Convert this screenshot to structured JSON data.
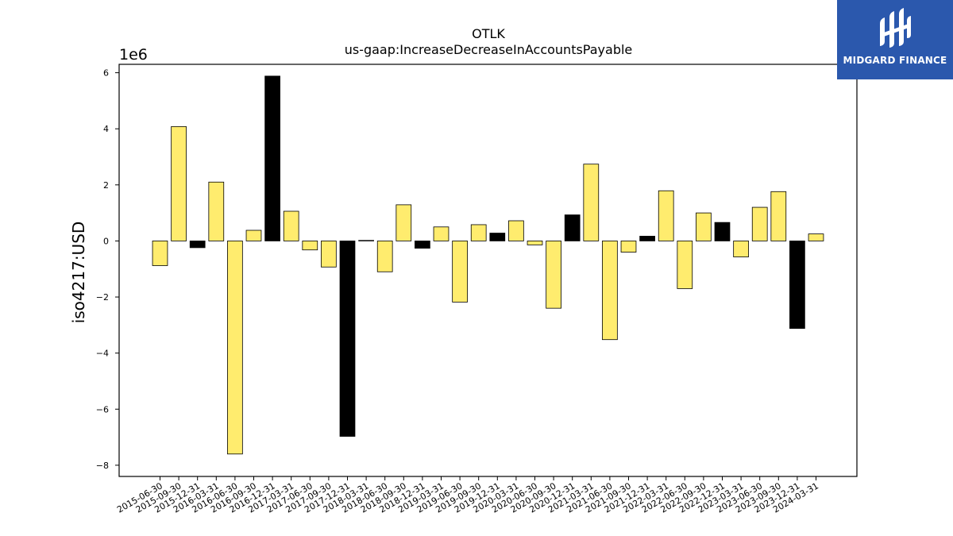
{
  "chart_data": {
    "type": "bar",
    "title": "OTLK",
    "subtitle": "us-gaap:IncreaseDecreaseInAccountsPayable",
    "ylabel": "iso4217:USD",
    "xlabel": "",
    "scale_label": "1e6",
    "ylim": [
      -8.4,
      6.3
    ],
    "yticks": [
      -8,
      -6,
      -4,
      -2,
      0,
      2,
      4,
      6
    ],
    "ytick_labels": [
      "−8",
      "−6",
      "−4",
      "−2",
      "0",
      "2",
      "4",
      "6"
    ],
    "grid": false,
    "categories": [
      "2015-06-30",
      "2015-09-30",
      "2015-12-31",
      "2016-03-31",
      "2016-06-30",
      "2016-09-30",
      "2016-12-31",
      "2017-03-31",
      "2017-06-30",
      "2017-09-30",
      "2017-12-31",
      "2018-03-31",
      "2018-06-30",
      "2018-09-30",
      "2018-12-31",
      "2019-03-31",
      "2019-06-30",
      "2019-09-30",
      "2019-12-31",
      "2020-03-31",
      "2020-06-30",
      "2020-09-30",
      "2020-12-31",
      "2021-03-31",
      "2021-06-30",
      "2021-09-30",
      "2021-12-31",
      "2022-03-31",
      "2022-06-30",
      "2022-09-30",
      "2022-12-31",
      "2023-03-31",
      "2023-06-30",
      "2023-09-30",
      "2023-12-31",
      "2024-03-31"
    ],
    "values": [
      -0.88,
      4.08,
      -0.24,
      2.1,
      -7.6,
      0.38,
      5.88,
      1.06,
      -0.32,
      -0.93,
      -6.97,
      0.02,
      -1.1,
      1.29,
      -0.26,
      0.5,
      -2.18,
      0.58,
      0.28,
      0.72,
      -0.14,
      -2.4,
      0.93,
      2.74,
      -3.52,
      -0.4,
      0.17,
      1.79,
      -1.7,
      1.0,
      0.66,
      -0.57,
      1.2,
      1.76,
      -3.12,
      0.25
    ],
    "bar_colors": [
      "#ffec6e",
      "#ffec6e",
      "#000000",
      "#ffec6e",
      "#ffec6e",
      "#ffec6e",
      "#000000",
      "#ffec6e",
      "#ffec6e",
      "#ffec6e",
      "#000000",
      "#000000",
      "#ffec6e",
      "#ffec6e",
      "#000000",
      "#ffec6e",
      "#ffec6e",
      "#ffec6e",
      "#000000",
      "#ffec6e",
      "#ffec6e",
      "#ffec6e",
      "#000000",
      "#ffec6e",
      "#ffec6e",
      "#ffec6e",
      "#000000",
      "#ffec6e",
      "#ffec6e",
      "#ffec6e",
      "#000000",
      "#ffec6e",
      "#ffec6e",
      "#ffec6e",
      "#000000",
      "#ffec6e"
    ]
  },
  "logo": {
    "text": "MIDGARD FINANCE",
    "background": "#2b58ad",
    "icon": "midgard-logo-icon"
  }
}
